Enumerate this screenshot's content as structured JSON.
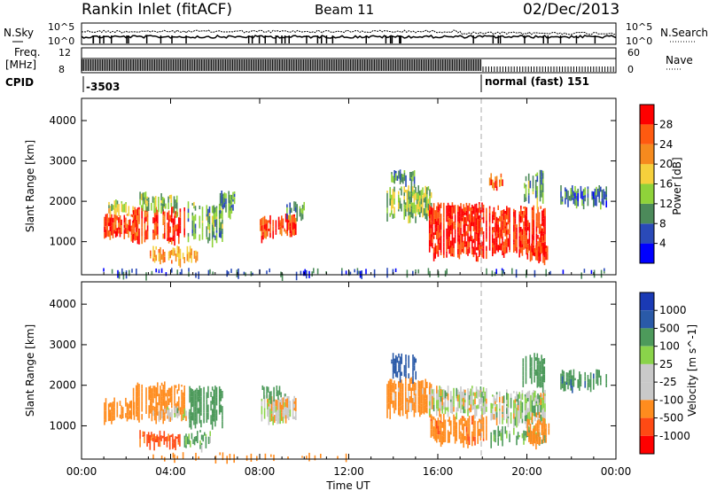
{
  "header": {
    "station": "Rankin Inlet (fitACF)",
    "beam": "Beam 11",
    "date": "02/Dec/2013"
  },
  "aux": {
    "nsky_label": "N.Sky",
    "nsky_ticks": [
      "10^5",
      "10^0"
    ],
    "nsearch_label": "N.Search",
    "freq_label": "Freq.",
    "freq_unit": "[MHz]",
    "freq_ticks": [
      "8",
      "12"
    ],
    "nave_label": "Nave",
    "nave_ticks": [
      "0",
      "60"
    ],
    "cpid_label": "CPID",
    "cpid_values": [
      "-3503",
      "normal (fast) 151"
    ]
  },
  "colors": {
    "power": [
      "#0000ff",
      "#2a4ab8",
      "#4c8a5a",
      "#8fd23a",
      "#f5d03c",
      "#f58a1e",
      "#ff5a10",
      "#ff0000"
    ],
    "velocity": [
      "#ff0000",
      "#ff4a14",
      "#ff8c1e",
      "#c9c9c9",
      "#c9c9c9",
      "#8ad34a",
      "#4d9a5b",
      "#2a5aa8",
      "#1a3ab5"
    ]
  },
  "chart_data": [
    {
      "type": "heatmap",
      "title": "Power",
      "xlabel": "",
      "ylabel": "Slant Range [km]",
      "x_ticks": [
        "00:00",
        "04:00",
        "08:00",
        "12:00",
        "16:00",
        "20:00",
        "00:00"
      ],
      "y_ticks": [
        "1000",
        "2000",
        "3000",
        "4000"
      ],
      "ylim": [
        180,
        4550
      ],
      "colorbar": {
        "label": "Power [dB]",
        "ticks": [
          "4",
          "8",
          "12",
          "16",
          "20",
          "24",
          "28"
        ],
        "range": [
          0,
          32
        ]
      },
      "regions": [
        {
          "t": [
            1.0,
            2.4
          ],
          "r": [
            1100,
            1700
          ],
          "v": 28
        },
        {
          "t": [
            1.2,
            2.4
          ],
          "r": [
            1700,
            2050
          ],
          "v": 16
        },
        {
          "t": [
            2.3,
            4.6
          ],
          "r": [
            1000,
            1900
          ],
          "v": 27
        },
        {
          "t": [
            2.6,
            4.3
          ],
          "r": [
            1800,
            2250
          ],
          "v": 14
        },
        {
          "t": [
            3.0,
            5.2
          ],
          "r": [
            500,
            900
          ],
          "v": 21
        },
        {
          "t": [
            4.7,
            6.3
          ],
          "r": [
            1000,
            2000
          ],
          "v": 12
        },
        {
          "t": [
            6.2,
            6.9
          ],
          "r": [
            1700,
            2300
          ],
          "v": 9
        },
        {
          "t": [
            8.0,
            9.6
          ],
          "r": [
            1100,
            1700
          ],
          "v": 27
        },
        {
          "t": [
            9.2,
            10.0
          ],
          "r": [
            1600,
            2000
          ],
          "v": 11
        },
        {
          "t": [
            13.7,
            15.7
          ],
          "r": [
            1600,
            2400
          ],
          "v": 14
        },
        {
          "t": [
            13.9,
            15.0
          ],
          "r": [
            2400,
            2800
          ],
          "v": 10
        },
        {
          "t": [
            15.6,
            18.2
          ],
          "r": [
            600,
            2000
          ],
          "v": 29
        },
        {
          "t": [
            18.3,
            20.8
          ],
          "r": [
            700,
            1900
          ],
          "v": 29
        },
        {
          "t": [
            20.0,
            20.9
          ],
          "r": [
            500,
            1000
          ],
          "v": 28
        },
        {
          "t": [
            18.3,
            19.0
          ],
          "r": [
            2300,
            2700
          ],
          "v": 24
        },
        {
          "t": [
            19.8,
            20.8
          ],
          "r": [
            2000,
            2800
          ],
          "v": 12
        },
        {
          "t": [
            21.5,
            23.6
          ],
          "r": [
            1900,
            2400
          ],
          "v": 8
        },
        {
          "t": [
            0.2,
            23.8
          ],
          "r": [
            200,
            350
          ],
          "v": 7
        }
      ]
    },
    {
      "type": "heatmap",
      "title": "Velocity",
      "xlabel": "Time UT",
      "ylabel": "Slant Range [km]",
      "x_ticks": [
        "00:00",
        "04:00",
        "08:00",
        "12:00",
        "16:00",
        "20:00",
        "00:00"
      ],
      "y_ticks": [
        "1000",
        "2000",
        "3000",
        "4000"
      ],
      "ylim": [
        180,
        4550
      ],
      "colorbar": {
        "label": "Velocity [m s^-1]",
        "ticks": [
          "1000",
          "500",
          "100",
          "25",
          "-25",
          "-100",
          "-500",
          "-1000"
        ]
      },
      "regions": [
        {
          "t": [
            1.0,
            2.4
          ],
          "r": [
            1100,
            1700
          ],
          "v": -300
        },
        {
          "t": [
            2.3,
            4.6
          ],
          "r": [
            1200,
            2100
          ],
          "v": -350
        },
        {
          "t": [
            3.2,
            4.8
          ],
          "r": [
            1200,
            1500
          ],
          "v": 0
        },
        {
          "t": [
            2.6,
            4.4
          ],
          "r": [
            500,
            900
          ],
          "v": -600
        },
        {
          "t": [
            4.6,
            5.8
          ],
          "r": [
            500,
            900
          ],
          "v": 150
        },
        {
          "t": [
            4.7,
            6.3
          ],
          "r": [
            1000,
            2000
          ],
          "v": 300
        },
        {
          "t": [
            8.0,
            9.6
          ],
          "r": [
            1100,
            1800
          ],
          "v": -40
        },
        {
          "t": [
            8.1,
            9.2
          ],
          "r": [
            1700,
            2000
          ],
          "v": 400
        },
        {
          "t": [
            13.7,
            15.7
          ],
          "r": [
            1300,
            2200
          ],
          "v": -200
        },
        {
          "t": [
            13.9,
            15.0
          ],
          "r": [
            2200,
            2800
          ],
          "v": 700
        },
        {
          "t": [
            15.6,
            18.2
          ],
          "r": [
            600,
            1300
          ],
          "v": -400
        },
        {
          "t": [
            15.6,
            18.2
          ],
          "r": [
            1300,
            2000
          ],
          "v": 0
        },
        {
          "t": [
            18.3,
            20.8
          ],
          "r": [
            1000,
            1900
          ],
          "v": 10
        },
        {
          "t": [
            18.3,
            20.8
          ],
          "r": [
            600,
            1000
          ],
          "v": 150
        },
        {
          "t": [
            20.0,
            21.0
          ],
          "r": [
            500,
            1200
          ],
          "v": -300
        },
        {
          "t": [
            19.8,
            20.8
          ],
          "r": [
            2000,
            2800
          ],
          "v": 300
        },
        {
          "t": [
            21.5,
            23.6
          ],
          "r": [
            1900,
            2400
          ],
          "v": 400
        },
        {
          "t": [
            3.0,
            12.0
          ],
          "r": [
            200,
            350
          ],
          "v": -200
        }
      ]
    }
  ]
}
